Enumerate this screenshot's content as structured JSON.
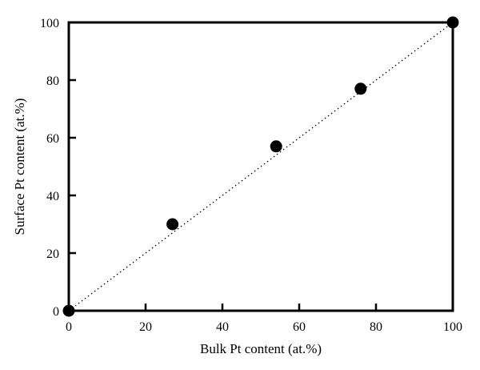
{
  "chart_data": {
    "type": "scatter",
    "title": "",
    "xlabel": "Bulk Pt content (at.%)",
    "ylabel": "Surface Pt content (at.%)",
    "xlim": [
      0,
      100
    ],
    "ylim": [
      0,
      100
    ],
    "xticks": [
      0,
      20,
      40,
      60,
      80,
      100
    ],
    "yticks": [
      0,
      20,
      40,
      60,
      80,
      100
    ],
    "grid": false,
    "legend": "none",
    "series": [
      {
        "x": [
          0,
          27,
          54,
          76,
          100
        ],
        "y": [
          0,
          30,
          57,
          77,
          100
        ],
        "color": "#000000",
        "marker": "filled-circle"
      }
    ],
    "reference_line": {
      "x": [
        0,
        100
      ],
      "y": [
        0,
        100
      ],
      "style": "dotted",
      "color": "#000000"
    }
  }
}
